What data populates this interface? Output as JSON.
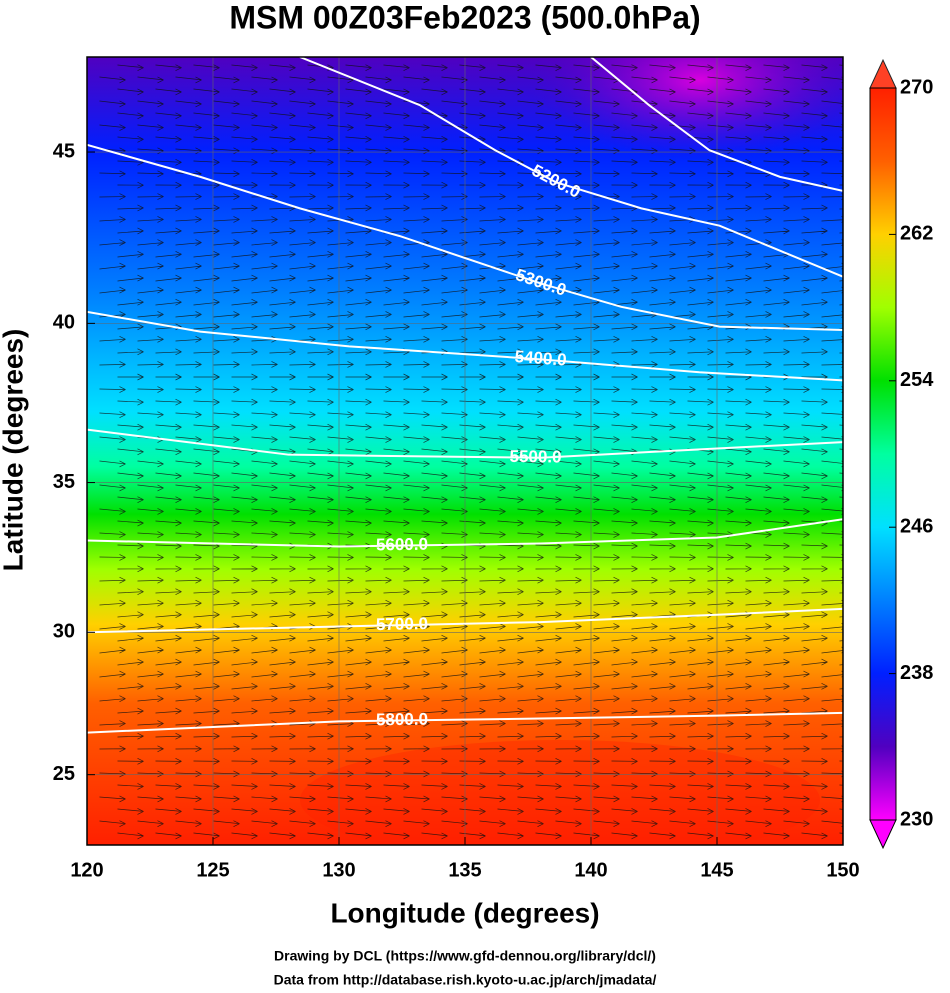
{
  "chart_data": {
    "type": "map",
    "title": "MSM 00Z03Feb2023 (500.0hPa)",
    "x_label": "Longitude (degrees)",
    "y_label": "Latitude  (degrees)",
    "xlim": [
      120,
      150
    ],
    "ylim": [
      22.45,
      47.6
    ],
    "xticks": [
      120,
      125,
      130,
      135,
      140,
      145,
      150
    ],
    "yticks": [
      25,
      30,
      35,
      40,
      45
    ],
    "grid": true,
    "colorbar": {
      "lim": [
        230,
        270
      ],
      "ticks": [
        230,
        238,
        246,
        254,
        262,
        270
      ],
      "colormap": [
        "#ff00ff",
        "#5000c0",
        "#0020ff",
        "#0080ff",
        "#00e0ff",
        "#00ffa0",
        "#00e000",
        "#a0ff00",
        "#ffd000",
        "#ff6000",
        "#ff2000"
      ]
    },
    "contours": [
      {
        "lon": [
          140,
          142.3,
          144.7,
          147.5,
          150
        ],
        "lat": [
          47.6,
          46.3,
          45.05,
          44.3,
          43.9
        ]
      },
      {
        "label": "5200.0",
        "lon": [
          128.45,
          133.2,
          136.2,
          138.6,
          142,
          145.1,
          150
        ],
        "lat": [
          47.6,
          46.3,
          45.05,
          44.15,
          43.4,
          42.9,
          41.4
        ]
      },
      {
        "label": "5300.0",
        "lon": [
          120,
          124.5,
          128.45,
          132.4,
          138,
          141.2,
          145.1,
          150
        ],
        "lat": [
          45.2,
          44.3,
          43.4,
          42.6,
          41.2,
          40.5,
          39.9,
          39.8
        ]
      },
      {
        "label": "5400.0",
        "lon": [
          120,
          124.5,
          130.4,
          138,
          144.3,
          150
        ],
        "lat": [
          40.35,
          39.75,
          39.3,
          38.9,
          38.5,
          38.25
        ]
      },
      {
        "label": "5500.0",
        "lon": [
          120,
          128,
          138,
          145,
          150
        ],
        "lat": [
          36.7,
          35.9,
          35.8,
          36.1,
          36.3
        ]
      },
      {
        "label": "5600.0",
        "lon": [
          120,
          130,
          138,
          145,
          150
        ],
        "lat": [
          33.1,
          32.9,
          33.0,
          33.2,
          33.8
        ]
      },
      {
        "label": "5700.0",
        "lon": [
          120,
          130,
          138,
          145,
          150
        ],
        "lat": [
          30.0,
          30.2,
          30.35,
          30.6,
          30.8
        ]
      },
      {
        "label": "5800.0",
        "lon": [
          120,
          130,
          138,
          145,
          150
        ],
        "lat": [
          26.5,
          26.9,
          27.0,
          27.1,
          27.2
        ]
      }
    ],
    "credits": [
      "Drawing by DCL (https://www.gfd-dennou.org/library/dcl/)",
      "Data from http://database.rish.kyoto-u.ac.jp/arch/jmadata/"
    ]
  }
}
